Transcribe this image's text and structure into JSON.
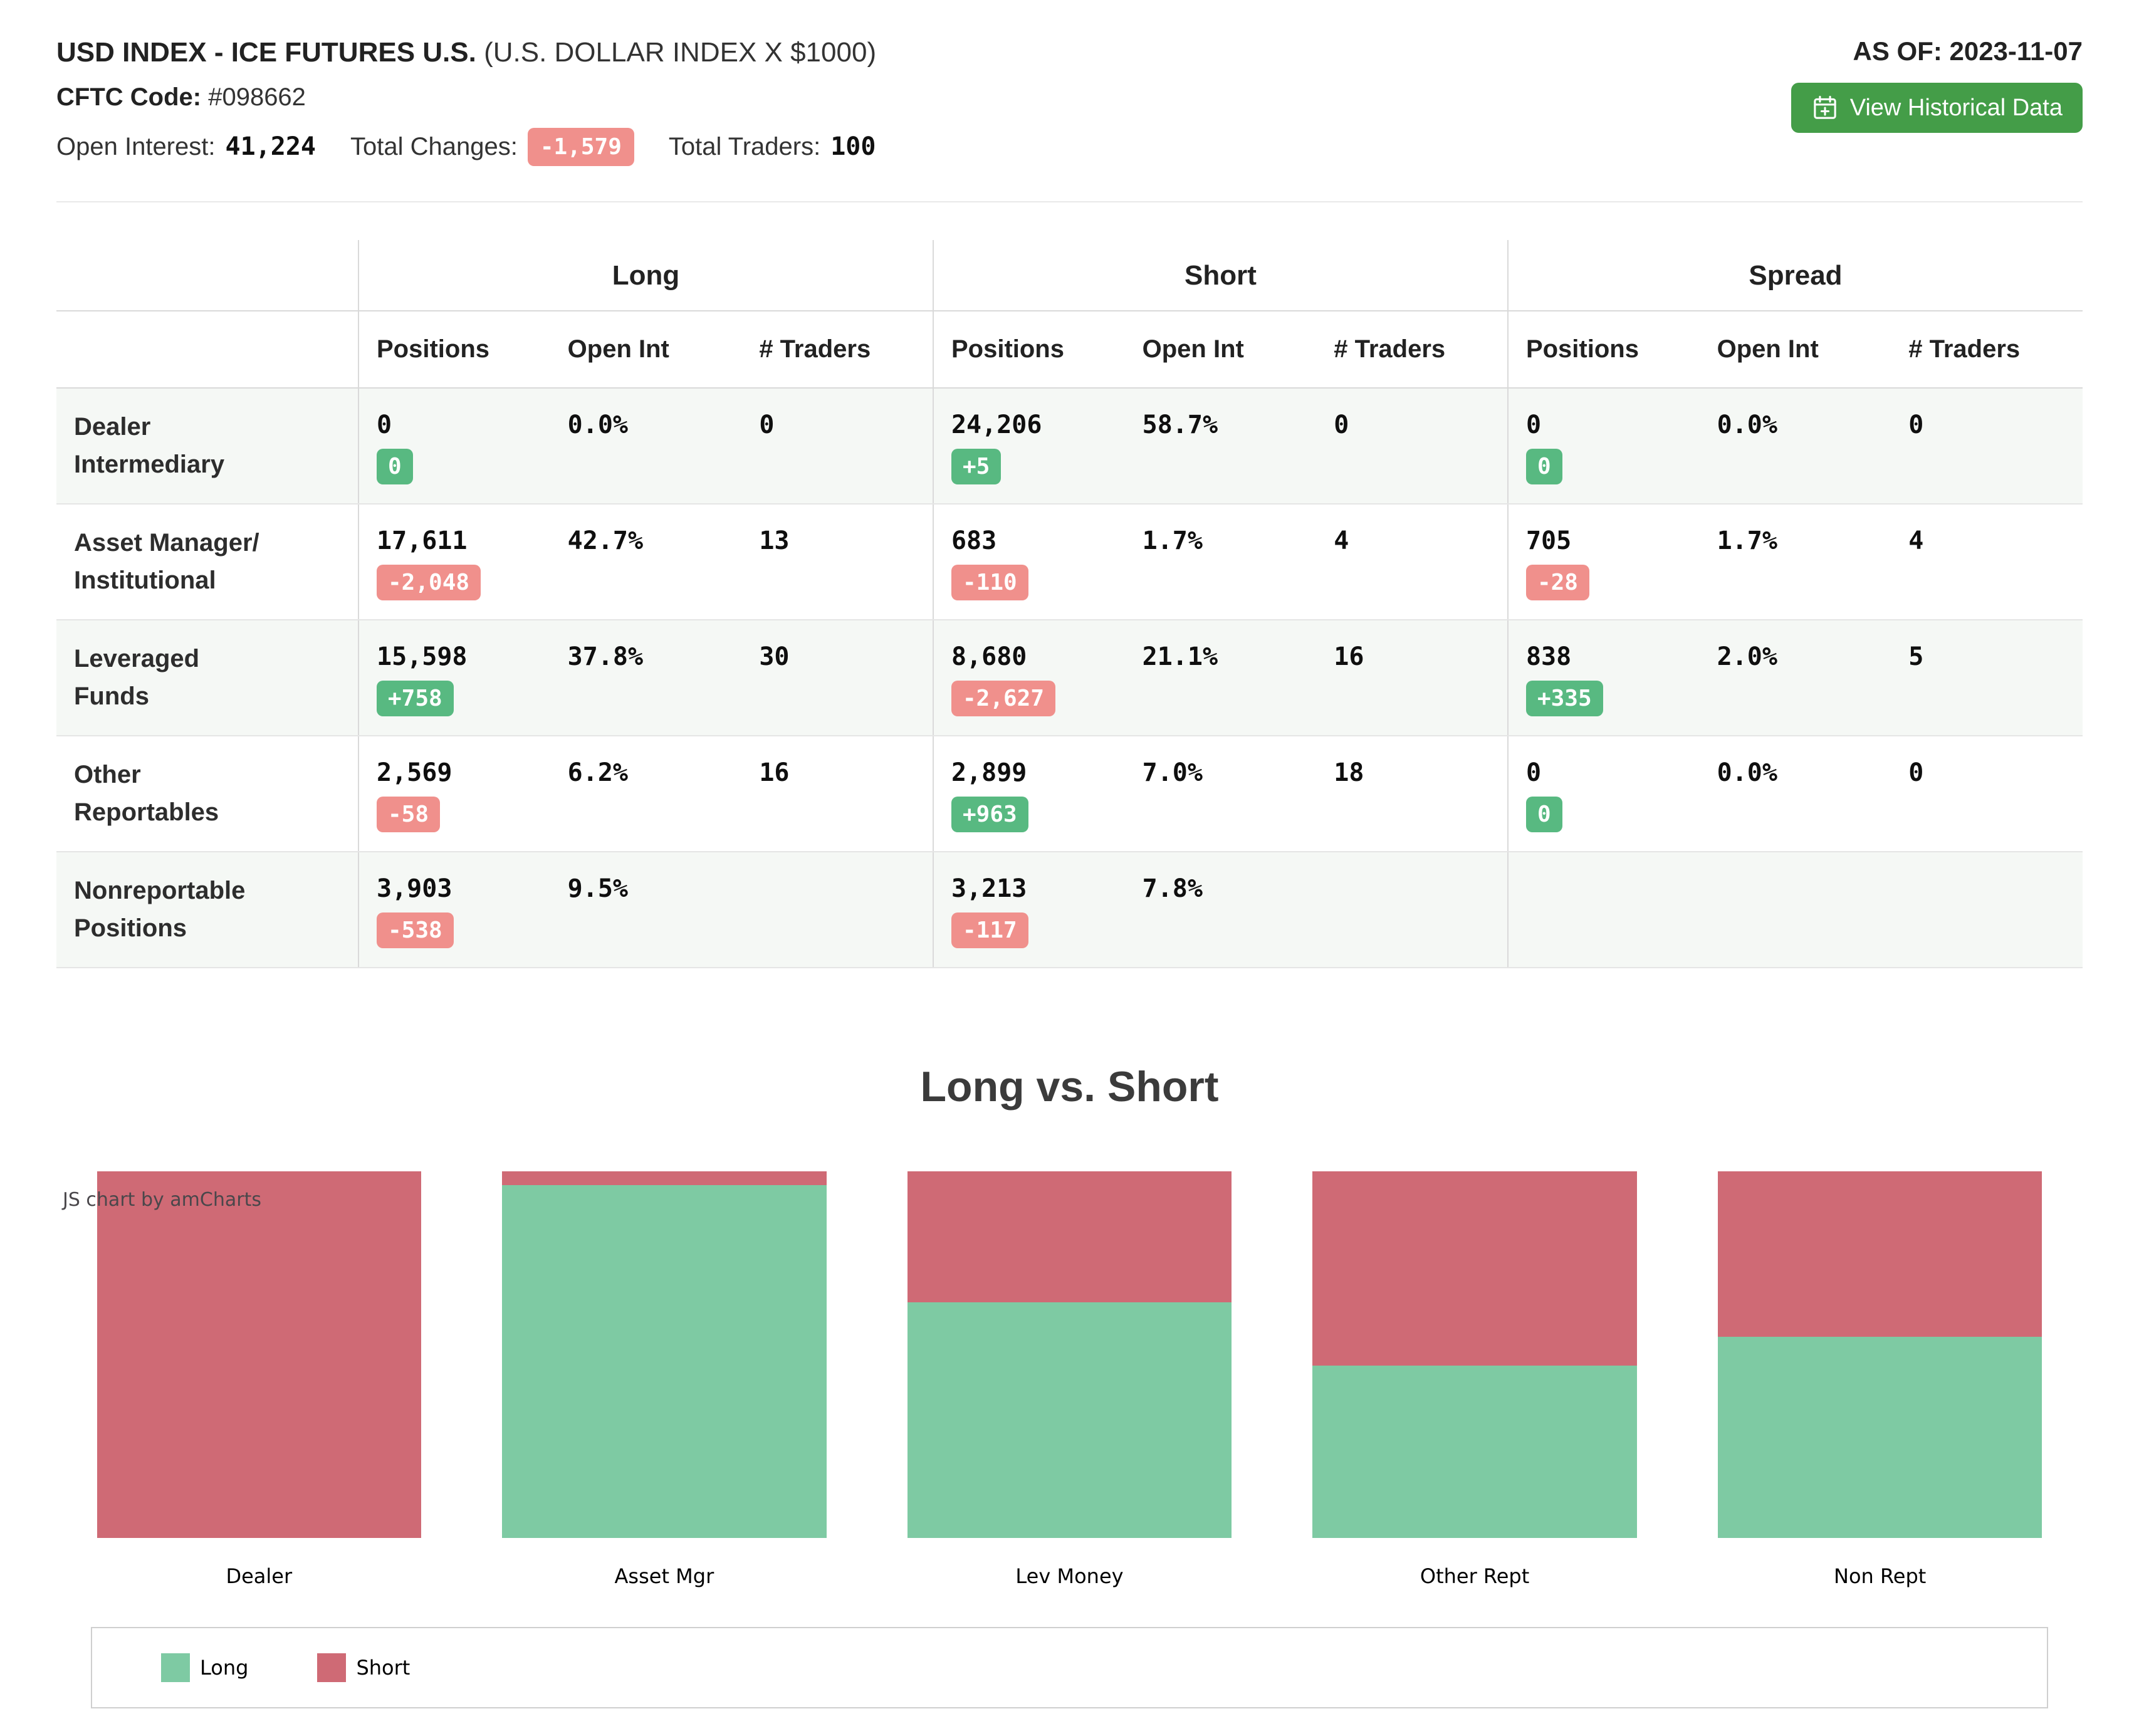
{
  "colors": {
    "badge_green": "#58b981",
    "badge_red": "#f0908c",
    "button_green": "#449d48",
    "chart_long_green": "#7ecaa3",
    "chart_short_red": "#cf6a75"
  },
  "header": {
    "title": "USD INDEX - ICE FUTURES U.S.",
    "subtitle": "(U.S. DOLLAR INDEX X $1000)",
    "cftc_label": "CFTC Code:",
    "cftc_value": "#098662",
    "open_interest_label": "Open Interest:",
    "open_interest_value": "41,224",
    "total_changes_label": "Total Changes:",
    "total_changes_value": "-1,579",
    "total_traders_label": "Total Traders:",
    "total_traders_value": "100",
    "as_of": "AS OF: 2023-11-07",
    "historical_button": "View Historical Data"
  },
  "table": {
    "groups": [
      "Long",
      "Short",
      "Spread"
    ],
    "sub_headers": [
      "Positions",
      "Open Int",
      "# Traders"
    ],
    "rows": [
      {
        "label_line1": "Dealer",
        "label_line2": "Intermediary",
        "long": {
          "positions": "0",
          "change": "0",
          "open_int": "0.0%",
          "traders": "0"
        },
        "short": {
          "positions": "24,206",
          "change": "+5",
          "open_int": "58.7%",
          "traders": "0"
        },
        "spread": {
          "positions": "0",
          "change": "0",
          "open_int": "0.0%",
          "traders": "0"
        }
      },
      {
        "label_line1": "Asset Manager/",
        "label_line2": "Institutional",
        "long": {
          "positions": "17,611",
          "change": "-2,048",
          "open_int": "42.7%",
          "traders": "13"
        },
        "short": {
          "positions": "683",
          "change": "-110",
          "open_int": "1.7%",
          "traders": "4"
        },
        "spread": {
          "positions": "705",
          "change": "-28",
          "open_int": "1.7%",
          "traders": "4"
        }
      },
      {
        "label_line1": "Leveraged",
        "label_line2": "Funds",
        "long": {
          "positions": "15,598",
          "change": "+758",
          "open_int": "37.8%",
          "traders": "30"
        },
        "short": {
          "positions": "8,680",
          "change": "-2,627",
          "open_int": "21.1%",
          "traders": "16"
        },
        "spread": {
          "positions": "838",
          "change": "+335",
          "open_int": "2.0%",
          "traders": "5"
        }
      },
      {
        "label_line1": "Other",
        "label_line2": "Reportables",
        "long": {
          "positions": "2,569",
          "change": "-58",
          "open_int": "6.2%",
          "traders": "16"
        },
        "short": {
          "positions": "2,899",
          "change": "+963",
          "open_int": "7.0%",
          "traders": "18"
        },
        "spread": {
          "positions": "0",
          "change": "0",
          "open_int": "0.0%",
          "traders": "0"
        }
      },
      {
        "label_line1": "Nonreportable",
        "label_line2": "Positions",
        "long": {
          "positions": "3,903",
          "change": "-538",
          "open_int": "9.5%",
          "traders": ""
        },
        "short": {
          "positions": "3,213",
          "change": "-117",
          "open_int": "7.8%",
          "traders": ""
        },
        "spread": null
      }
    ]
  },
  "chart_data": {
    "type": "bar",
    "stacked": "percent",
    "title": "Long vs. Short",
    "watermark": "JS chart by amCharts",
    "categories": [
      "Dealer",
      "Asset Mgr",
      "Lev Money",
      "Other Rept",
      "Non Rept"
    ],
    "series": [
      {
        "name": "Long",
        "color": "#7ecaa3",
        "values": [
          0,
          17611,
          15598,
          2569,
          3903
        ]
      },
      {
        "name": "Short",
        "color": "#cf6a75",
        "values": [
          24206,
          683,
          8680,
          2899,
          3213
        ]
      }
    ],
    "legend_position": "bottom",
    "grid": false,
    "ylim": [
      0,
      100
    ]
  }
}
